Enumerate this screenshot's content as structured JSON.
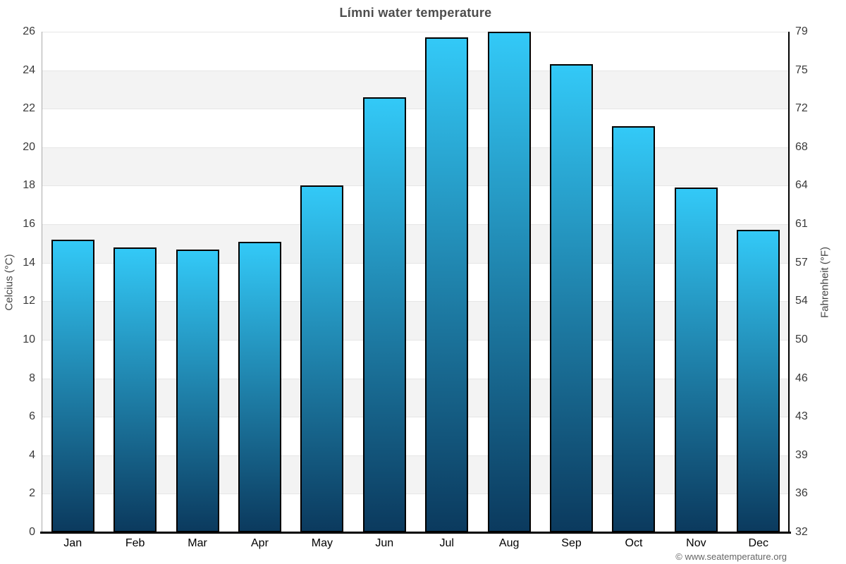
{
  "header": {
    "title": "Límni water temperature"
  },
  "footer": {
    "text": "© www.seatemperature.org"
  },
  "chart_data": {
    "type": "bar",
    "title": "Límni water temperature",
    "categories": [
      "Jan",
      "Feb",
      "Mar",
      "Apr",
      "May",
      "Jun",
      "Jul",
      "Aug",
      "Sep",
      "Oct",
      "Nov",
      "Dec"
    ],
    "series": [
      {
        "name": "Water temperature",
        "values": [
          15.2,
          14.8,
          14.7,
          15.1,
          18.0,
          22.6,
          25.7,
          26.0,
          24.3,
          21.1,
          17.9,
          15.7
        ]
      }
    ],
    "xlabel": "",
    "ylabel_left": "Celcius (°C)",
    "ylabel_right": "Fahrenheit (°F)",
    "ylim": [
      0,
      26
    ],
    "yticks_celsius": [
      0,
      2,
      4,
      6,
      8,
      10,
      12,
      14,
      16,
      18,
      20,
      22,
      24,
      26
    ],
    "yticks_fahrenheit_labels": [
      "32",
      "36",
      "39",
      "43",
      "46",
      "50",
      "54",
      "57",
      "61",
      "64",
      "68",
      "72",
      "75",
      "79"
    ],
    "grid": true,
    "legend": "none",
    "plot_band_color": "#f3f3f3",
    "gridline_color": "#e6e6e6",
    "bar_gradient_top": "#33c9f7",
    "bar_gradient_bottom": "#0b3a5e",
    "bar_border_color": "#000000"
  }
}
